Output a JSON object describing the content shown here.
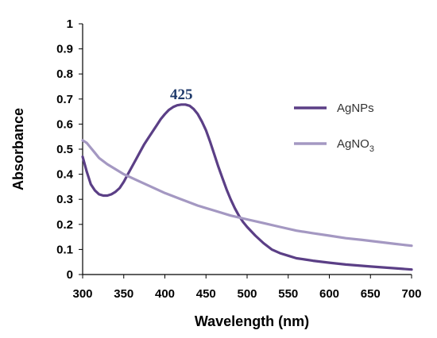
{
  "chart_data": {
    "type": "line",
    "title": "",
    "xlabel": "Wavelength (nm)",
    "ylabel": "Absorbance",
    "xlim": [
      300,
      700
    ],
    "ylim": [
      0,
      1
    ],
    "xticks": [
      "300",
      "350",
      "400",
      "450",
      "500",
      "550",
      "600",
      "650",
      "700"
    ],
    "yticks": [
      "0",
      "0.1",
      "0.2",
      "0.3",
      "0.4",
      "0.5",
      "0.6",
      "0.7",
      "0.8",
      "0.9",
      "1"
    ],
    "grid": false,
    "legend_position": "right",
    "series": [
      {
        "name": "AgNPs",
        "label_html": "AgNPs",
        "color": "#5b3f86",
        "x": [
          300,
          305,
          310,
          315,
          320,
          325,
          330,
          335,
          340,
          345,
          350,
          355,
          360,
          365,
          370,
          375,
          380,
          385,
          390,
          395,
          400,
          405,
          410,
          415,
          420,
          425,
          430,
          435,
          440,
          445,
          450,
          455,
          460,
          465,
          470,
          475,
          480,
          485,
          490,
          495,
          500,
          510,
          520,
          530,
          540,
          550,
          560,
          570,
          580,
          600,
          620,
          650,
          680,
          700
        ],
        "y": [
          0.47,
          0.41,
          0.36,
          0.335,
          0.32,
          0.315,
          0.315,
          0.32,
          0.33,
          0.345,
          0.37,
          0.4,
          0.43,
          0.46,
          0.49,
          0.52,
          0.545,
          0.57,
          0.595,
          0.62,
          0.64,
          0.657,
          0.668,
          0.675,
          0.678,
          0.678,
          0.673,
          0.66,
          0.64,
          0.61,
          0.575,
          0.53,
          0.48,
          0.43,
          0.385,
          0.34,
          0.3,
          0.265,
          0.235,
          0.21,
          0.19,
          0.155,
          0.125,
          0.1,
          0.085,
          0.075,
          0.065,
          0.06,
          0.055,
          0.047,
          0.04,
          0.032,
          0.025,
          0.02
        ]
      },
      {
        "name": "AgNO3",
        "label_html": "AgNO<tspan font-size=\"11\" dy=\"5\">3</tspan>",
        "color": "#a498c2",
        "x": [
          300,
          305,
          310,
          315,
          320,
          330,
          340,
          350,
          360,
          370,
          380,
          390,
          400,
          420,
          440,
          460,
          480,
          500,
          520,
          540,
          560,
          580,
          600,
          620,
          640,
          660,
          680,
          700
        ],
        "y": [
          0.535,
          0.525,
          0.505,
          0.485,
          0.465,
          0.44,
          0.42,
          0.4,
          0.385,
          0.37,
          0.355,
          0.34,
          0.325,
          0.3,
          0.275,
          0.255,
          0.235,
          0.22,
          0.205,
          0.19,
          0.175,
          0.165,
          0.155,
          0.145,
          0.138,
          0.13,
          0.122,
          0.115
        ]
      }
    ],
    "annotations": [
      {
        "text": "425",
        "x": 420,
        "y": 0.7,
        "color": "#1f3a6b"
      }
    ]
  }
}
